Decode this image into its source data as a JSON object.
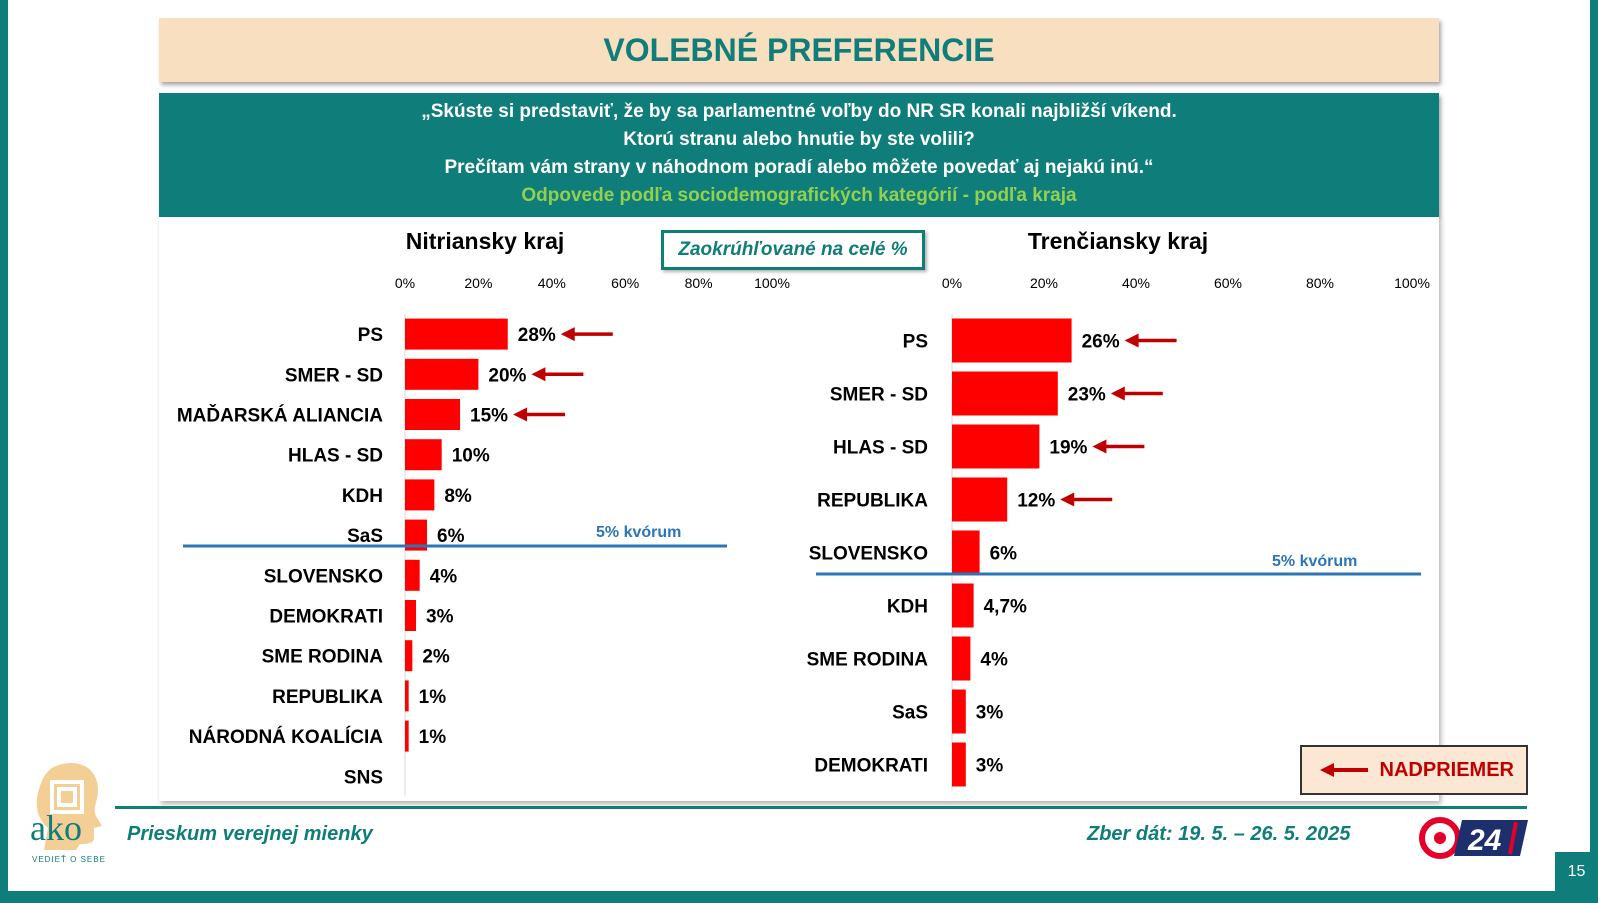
{
  "title": "VOLEBNÉ PREFERENCIE",
  "question": {
    "line1": "„Skúste si predstaviť, že by sa parlamentné voľby do NR SR konali najbližší víkend.",
    "line2": "Ktorú stranu alebo hnutie by ste volili?",
    "line3": "Prečítam vám strany v náhodnom poradí alebo môžete povedať aj nejakú inú.“",
    "subtitle": "Odpovede podľa sociodemografických kategórií - podľa kraja"
  },
  "rounding_note": "Zaokrúhľované na celé %",
  "legend": {
    "label": "NADPRIEMER"
  },
  "footer": {
    "left": "Prieskum verejnej mienky",
    "right": "Zber dát: 19. 5. – 26. 5. 2025",
    "page": "15",
    "logo_text": "ako",
    "logo_tagline": "VEDIEŤ O SEBE",
    "tv_logo": "24"
  },
  "colors": {
    "teal": "#0f7d7a",
    "bar": "#ff0000",
    "arrow": "#c00000",
    "quorum_line": "#2e75b6",
    "title_bg": "#f8dfbf",
    "subtitle_green": "#92d050"
  },
  "chart_data": [
    {
      "type": "bar",
      "orientation": "horizontal",
      "title": "Nitriansky kraj",
      "xlim": [
        0,
        100
      ],
      "ticks": [
        "0%",
        "20%",
        "40%",
        "60%",
        "80%",
        "100%"
      ],
      "quorum_label": "5% kvórum",
      "quorum_after_index": 5,
      "categories": [
        "PS",
        "SMER - SD",
        "MAĎARSKÁ ALIANCIA",
        "HLAS - SD",
        "KDH",
        "SaS",
        "SLOVENSKO",
        "DEMOKRATI",
        "SME RODINA",
        "REPUBLIKA",
        "NÁRODNÁ KOALÍCIA",
        "SNS"
      ],
      "values": [
        28,
        20,
        15,
        10,
        8,
        6,
        4,
        3,
        2,
        1,
        1,
        0
      ],
      "labels": [
        "28%",
        "20%",
        "15%",
        "10%",
        "8%",
        "6%",
        "4%",
        "3%",
        "2%",
        "1%",
        "1%",
        ""
      ],
      "above_average": [
        true,
        true,
        true,
        false,
        false,
        false,
        false,
        false,
        false,
        false,
        false,
        false
      ]
    },
    {
      "type": "bar",
      "orientation": "horizontal",
      "title": "Trenčiansky kraj",
      "xlim": [
        0,
        100
      ],
      "ticks": [
        "0%",
        "20%",
        "40%",
        "60%",
        "80%",
        "100%"
      ],
      "quorum_label": "5% kvórum",
      "quorum_after_index": 4,
      "categories": [
        "PS",
        "SMER - SD",
        "HLAS - SD",
        "REPUBLIKA",
        "SLOVENSKO",
        "KDH",
        "SME RODINA",
        "SaS",
        "DEMOKRATI"
      ],
      "values": [
        26,
        23,
        19,
        12,
        6,
        4.7,
        4,
        3,
        3
      ],
      "labels": [
        "26%",
        "23%",
        "19%",
        "12%",
        "6%",
        "4,7%",
        "4%",
        "3%",
        "3%"
      ],
      "above_average": [
        true,
        true,
        true,
        true,
        false,
        false,
        false,
        false,
        false
      ]
    }
  ]
}
